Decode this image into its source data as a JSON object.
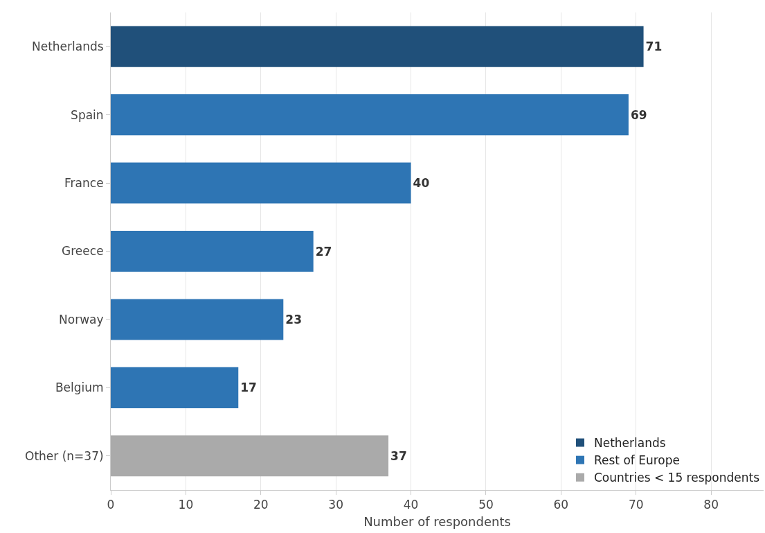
{
  "chart_data": {
    "type": "bar",
    "orientation": "horizontal",
    "xlabel": "Number of respondents",
    "categories": [
      "Netherlands",
      "Spain",
      "France",
      "Greece",
      "Norway",
      "Belgium",
      "Other (n=37)"
    ],
    "series": [
      {
        "name": "Netherlands",
        "color": "#20507a",
        "values": [
          71,
          null,
          null,
          null,
          null,
          null,
          null
        ]
      },
      {
        "name": "Rest of Europe",
        "color": "#2e75b4",
        "values": [
          null,
          69,
          40,
          27,
          23,
          17,
          null
        ]
      },
      {
        "name": "Countries < 15 respondents",
        "color": "#aaaaaa",
        "values": [
          null,
          null,
          null,
          null,
          null,
          null,
          37
        ]
      }
    ],
    "xlim": [
      0,
      87
    ],
    "xticks": [
      0,
      10,
      20,
      30,
      40,
      50,
      60,
      70,
      80
    ],
    "grid": "x",
    "legend": "bottom right",
    "data_labels": true
  }
}
